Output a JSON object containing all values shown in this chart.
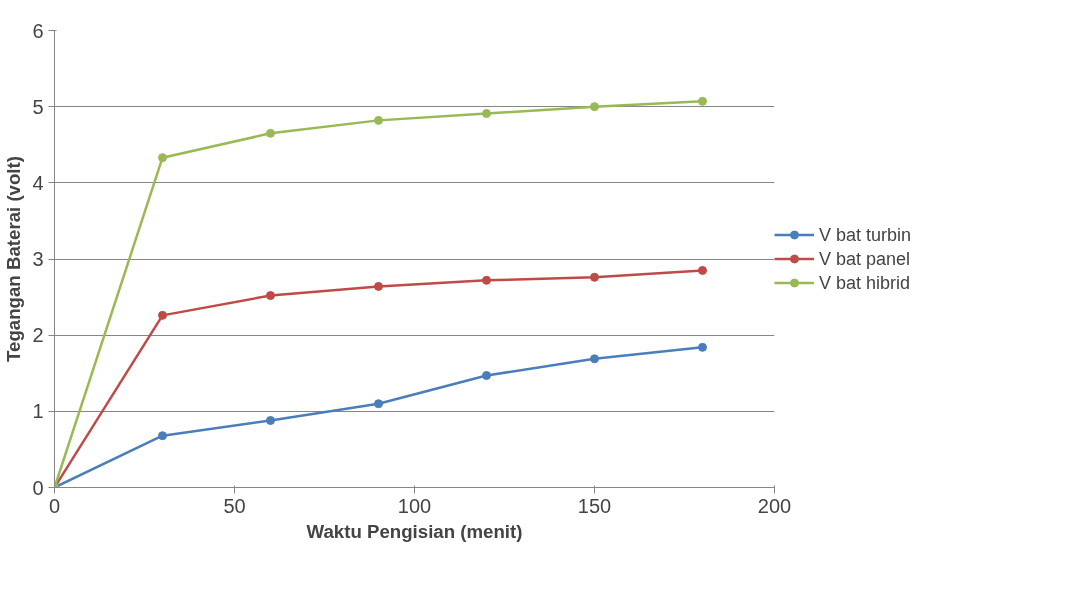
{
  "chart_data": {
    "type": "line",
    "xlabel": "Waktu Pengisian (menit)",
    "ylabel": "Tegangan Baterai (volt)",
    "x": [
      0,
      30,
      60,
      90,
      120,
      150,
      180
    ],
    "series": [
      {
        "name": "V bat turbin",
        "color": "#4a7ebb",
        "values": [
          0,
          0.68,
          0.88,
          1.1,
          1.47,
          1.69,
          1.84
        ]
      },
      {
        "name": "V bat panel",
        "color": "#be4b48",
        "values": [
          0,
          2.26,
          2.52,
          2.64,
          2.72,
          2.76,
          2.85
        ]
      },
      {
        "name": "V bat hibrid",
        "color": "#98b954",
        "values": [
          0,
          4.33,
          4.65,
          4.82,
          4.91,
          5.0,
          5.07
        ]
      }
    ],
    "xlim": [
      0,
      200
    ],
    "xticks": [
      0,
      50,
      100,
      150,
      200
    ],
    "ylim": [
      0,
      6
    ],
    "yticks": [
      0,
      1,
      2,
      3,
      4,
      5,
      6
    ],
    "grid": "y",
    "legend": "right",
    "marker": "circle",
    "line_style": "solid"
  }
}
